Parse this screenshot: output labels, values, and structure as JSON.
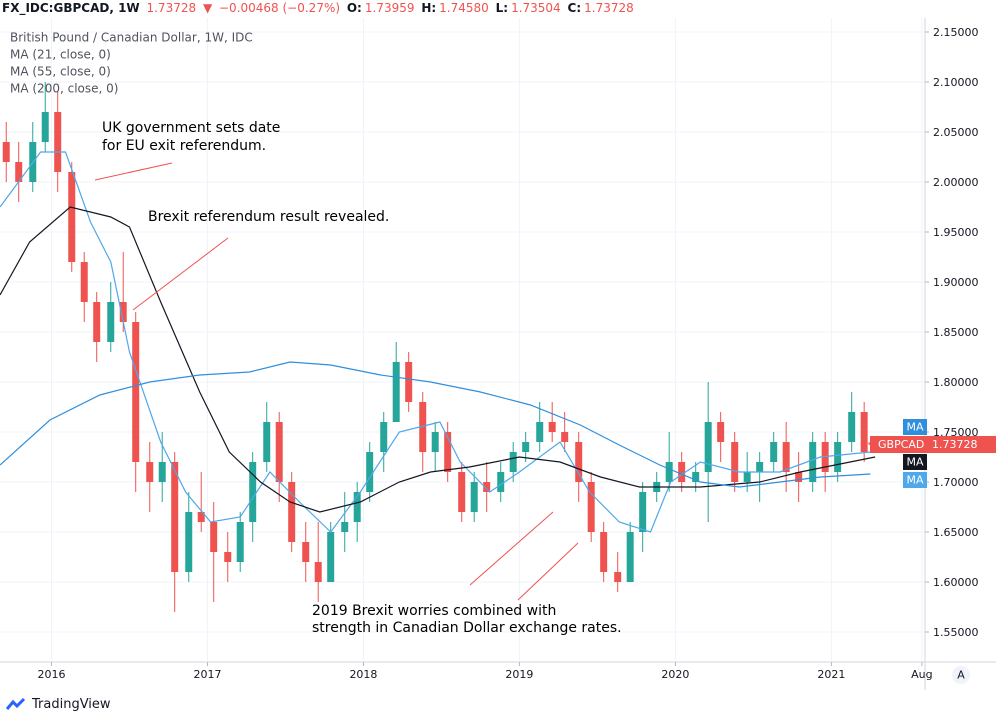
{
  "header": {
    "symbol": "FX_IDC:GBPCAD, 1W",
    "last": "1.73728",
    "arrow": "▼",
    "change": "−0.00468 (−0.27%)",
    "o_label": "O:",
    "open": "1.73959",
    "h_label": "H:",
    "high": "1.74580",
    "l_label": "L:",
    "low": "1.73504",
    "c_label": "C:",
    "close": "1.73728"
  },
  "chart_data": {
    "type": "candlestick",
    "title": "British Pound / Canadian Dollar, 1W, IDC",
    "up_color": "#26a69a",
    "down_color": "#ef5350",
    "grid": true,
    "x": [
      2015.71,
      2015.79,
      2015.88,
      2015.96,
      2016.04,
      2016.13,
      2016.21,
      2016.29,
      2016.38,
      2016.46,
      2016.54,
      2016.63,
      2016.71,
      2016.79,
      2016.88,
      2016.96,
      2017.04,
      2017.13,
      2017.21,
      2017.29,
      2017.38,
      2017.46,
      2017.54,
      2017.63,
      2017.71,
      2017.79,
      2017.88,
      2017.96,
      2018.04,
      2018.13,
      2018.21,
      2018.29,
      2018.38,
      2018.46,
      2018.54,
      2018.63,
      2018.71,
      2018.79,
      2018.88,
      2018.96,
      2019.04,
      2019.13,
      2019.21,
      2019.29,
      2019.38,
      2019.46,
      2019.54,
      2019.63,
      2019.71,
      2019.79,
      2019.88,
      2019.96,
      2020.04,
      2020.13,
      2020.21,
      2020.29,
      2020.38,
      2020.46,
      2020.54,
      2020.63,
      2020.71,
      2020.79,
      2020.88,
      2020.96,
      2021.04,
      2021.13,
      2021.21,
      2021.26
    ],
    "open": [
      2.04,
      2.02,
      2.0,
      2.04,
      2.07,
      2.01,
      1.92,
      1.88,
      1.84,
      1.88,
      1.86,
      1.72,
      1.7,
      1.72,
      1.61,
      1.67,
      1.66,
      1.63,
      1.62,
      1.66,
      1.72,
      1.76,
      1.7,
      1.64,
      1.62,
      1.6,
      1.65,
      1.66,
      1.69,
      1.73,
      1.76,
      1.82,
      1.78,
      1.73,
      1.75,
      1.71,
      1.67,
      1.7,
      1.69,
      1.71,
      1.73,
      1.74,
      1.76,
      1.75,
      1.74,
      1.7,
      1.65,
      1.61,
      1.6,
      1.65,
      1.69,
      1.7,
      1.72,
      1.7,
      1.71,
      1.76,
      1.74,
      1.7,
      1.71,
      1.72,
      1.74,
      1.71,
      1.7,
      1.74,
      1.71,
      1.74,
      1.77,
      1.73959
    ],
    "high": [
      2.06,
      2.04,
      2.06,
      2.1,
      2.09,
      2.02,
      1.93,
      1.89,
      1.9,
      1.93,
      1.87,
      1.74,
      1.75,
      1.73,
      1.69,
      1.71,
      1.68,
      1.65,
      1.67,
      1.73,
      1.78,
      1.77,
      1.71,
      1.66,
      1.66,
      1.66,
      1.69,
      1.7,
      1.74,
      1.77,
      1.84,
      1.83,
      1.79,
      1.76,
      1.76,
      1.72,
      1.71,
      1.72,
      1.72,
      1.74,
      1.75,
      1.78,
      1.78,
      1.77,
      1.75,
      1.71,
      1.66,
      1.63,
      1.66,
      1.7,
      1.71,
      1.75,
      1.73,
      1.72,
      1.8,
      1.77,
      1.75,
      1.73,
      1.73,
      1.75,
      1.76,
      1.73,
      1.75,
      1.75,
      1.75,
      1.79,
      1.78,
      1.7458
    ],
    "low": [
      2.0,
      1.98,
      1.99,
      2.03,
      1.99,
      1.91,
      1.86,
      1.82,
      1.83,
      1.85,
      1.69,
      1.67,
      1.68,
      1.57,
      1.6,
      1.65,
      1.58,
      1.6,
      1.61,
      1.64,
      1.71,
      1.68,
      1.63,
      1.6,
      1.58,
      1.6,
      1.63,
      1.64,
      1.68,
      1.71,
      1.76,
      1.77,
      1.71,
      1.71,
      1.7,
      1.66,
      1.66,
      1.67,
      1.68,
      1.7,
      1.72,
      1.73,
      1.74,
      1.73,
      1.68,
      1.64,
      1.6,
      1.59,
      1.6,
      1.63,
      1.68,
      1.69,
      1.69,
      1.69,
      1.66,
      1.72,
      1.69,
      1.69,
      1.68,
      1.71,
      1.69,
      1.68,
      1.69,
      1.69,
      1.7,
      1.73,
      1.72,
      1.73504
    ],
    "close": [
      2.02,
      2.0,
      2.04,
      2.07,
      2.01,
      1.92,
      1.88,
      1.84,
      1.88,
      1.86,
      1.72,
      1.7,
      1.72,
      1.61,
      1.67,
      1.66,
      1.63,
      1.62,
      1.66,
      1.72,
      1.76,
      1.7,
      1.64,
      1.62,
      1.6,
      1.65,
      1.66,
      1.69,
      1.73,
      1.76,
      1.82,
      1.78,
      1.73,
      1.75,
      1.71,
      1.67,
      1.7,
      1.69,
      1.71,
      1.73,
      1.74,
      1.76,
      1.75,
      1.74,
      1.7,
      1.65,
      1.61,
      1.6,
      1.65,
      1.69,
      1.7,
      1.72,
      1.7,
      1.71,
      1.76,
      1.74,
      1.7,
      1.71,
      1.72,
      1.74,
      1.71,
      1.7,
      1.74,
      1.71,
      1.74,
      1.77,
      1.73,
      1.73728
    ],
    "series": [
      {
        "name": "MA (21, close, 0)",
        "color": "#4fa8ea",
        "x": [
          2015.67,
          2015.93,
          2016.09,
          2016.25,
          2016.38,
          2016.5,
          2016.7,
          2016.86,
          2017.02,
          2017.21,
          2017.4,
          2017.59,
          2017.79,
          2017.98,
          2018.23,
          2018.49,
          2018.62,
          2018.81,
          2019.0,
          2019.26,
          2019.45,
          2019.64,
          2019.84,
          2019.97,
          2020.16,
          2020.41,
          2020.67,
          2020.93,
          2021.25
        ],
        "values": [
          1.975,
          2.03,
          2.03,
          1.96,
          1.92,
          1.83,
          1.74,
          1.69,
          1.66,
          1.665,
          1.71,
          1.68,
          1.65,
          1.69,
          1.75,
          1.76,
          1.72,
          1.69,
          1.71,
          1.74,
          1.69,
          1.66,
          1.65,
          1.7,
          1.72,
          1.71,
          1.71,
          1.725,
          1.73
        ]
      },
      {
        "name": "MA (55, close, 0)",
        "color": "#131722",
        "x": [
          2015.67,
          2015.86,
          2016.12,
          2016.38,
          2016.5,
          2016.7,
          2016.95,
          2017.14,
          2017.34,
          2017.53,
          2017.72,
          2017.98,
          2018.23,
          2018.43,
          2018.68,
          2019.0,
          2019.26,
          2019.52,
          2019.77,
          2020.16,
          2020.54,
          2020.8,
          2021.12,
          2021.28
        ],
        "values": [
          1.887,
          1.94,
          1.975,
          1.965,
          1.955,
          1.88,
          1.79,
          1.73,
          1.7,
          1.68,
          1.67,
          1.68,
          1.7,
          1.71,
          1.715,
          1.725,
          1.72,
          1.705,
          1.695,
          1.695,
          1.7,
          1.71,
          1.72,
          1.725
        ]
      },
      {
        "name": "MA (200, close, 0)",
        "color": "#2f8fdc",
        "x": [
          2015.67,
          2015.99,
          2016.31,
          2016.63,
          2016.95,
          2017.27,
          2017.53,
          2017.79,
          2018.11,
          2018.43,
          2018.75,
          2019.07,
          2019.39,
          2019.64,
          2019.9,
          2020.16,
          2020.41,
          2020.67,
          2020.93,
          2021.25
        ],
        "values": [
          1.717,
          1.762,
          1.787,
          1.8,
          1.807,
          1.81,
          1.82,
          1.817,
          1.807,
          1.8,
          1.79,
          1.777,
          1.757,
          1.737,
          1.717,
          1.7,
          1.695,
          1.7,
          1.705,
          1.708
        ]
      }
    ],
    "xlim": [
      2015.67,
      2021.6
    ],
    "xticks": [
      2016,
      2017,
      2018,
      2019,
      2020,
      2021,
      {
        "value": 2021.58,
        "label": "Aug"
      }
    ],
    "ylim": [
      1.52,
      2.164
    ],
    "yticks": [
      {
        "value": 1.55,
        "label": "1.55000"
      },
      {
        "value": 1.6,
        "label": "1.60000"
      },
      {
        "value": 1.65,
        "label": "1.65000"
      },
      {
        "value": 1.7,
        "label": "1.70000"
      },
      {
        "value": 1.75,
        "label": "1.75000"
      },
      {
        "value": 1.8,
        "label": "1.80000"
      },
      {
        "value": 1.85,
        "label": "1.85000"
      },
      {
        "value": 1.9,
        "label": "1.90000"
      },
      {
        "value": 1.95,
        "label": "1.95000"
      },
      {
        "value": 2.0,
        "label": "2.00000"
      },
      {
        "value": 2.05,
        "label": "2.05000"
      },
      {
        "value": 2.1,
        "label": "2.10000"
      },
      {
        "value": 2.15,
        "label": "2.15000"
      }
    ],
    "annotations": [
      [
        "UK government sets date",
        "for EU exit referendum."
      ],
      [
        "Brexit referendum result revealed."
      ],
      [
        "2019 Brexit worries combined with",
        "strength in Canadian Dollar exchange rates."
      ]
    ],
    "badges": {
      "ma": "MA",
      "symbol": "GBPCAD"
    }
  },
  "footer": {
    "brand": "TradingView",
    "auto": "A"
  }
}
